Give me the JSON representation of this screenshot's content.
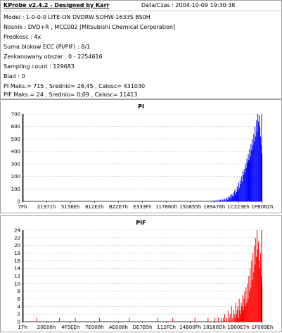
{
  "header": {
    "app_title": "KProbe v2.4.2 - Designed by Karr",
    "date_label": "Data/Czas : 2004-10-09 19:30:38"
  },
  "info_lines": [
    "Model : 1-0-0-0 LITE-ON DVDRW SOHW-1633S BS0H",
    "Nosnik : DVD+R , MCC002 [Mitsubishi Chemical Corporation]",
    "Predkosc : 4x",
    "Suma blokow ECC (PI/PIF) : 8/1",
    "Zeskanowany obszar : 0 - 2254616",
    "Sampling count : 129683",
    "Blad : 0",
    "PI Maks.= 715 , Srednio= 26,45 , Calosc= 431030",
    "PIF Maks.= 24 , Srednio= 0,09 , Calosc= 11413"
  ],
  "colors": {
    "pi_series": "#0000ff",
    "pif_series": "#ff0000",
    "grid": "#b4b4b4",
    "boundary": "#000000"
  },
  "chart_data": [
    {
      "type": "bar",
      "title": "PI",
      "ylim": [
        0,
        700
      ],
      "yticks": [
        0,
        100,
        200,
        300,
        400,
        500,
        600,
        700
      ],
      "xticks": [
        "7Fh",
        "21971h",
        "5156Eh",
        "812E2h",
        "B22E7h",
        "E333Fh",
        "117860h",
        "150855h",
        "189476h",
        "1C223Eh",
        "1FB062h"
      ],
      "grid": true,
      "series": [
        {
          "values": [
            0,
            0,
            0,
            0,
            0,
            0,
            0,
            0,
            0,
            0,
            0,
            0,
            0,
            0,
            0,
            0,
            0,
            0,
            0,
            0,
            0,
            0,
            0,
            0,
            0,
            0,
            0,
            0,
            0,
            0,
            0,
            0,
            0,
            0,
            0,
            0,
            0,
            0,
            0,
            0,
            0,
            0,
            0,
            0,
            0,
            0,
            0,
            0,
            0,
            0,
            0,
            0,
            0,
            0,
            0,
            0,
            0,
            0,
            0,
            0,
            0,
            0,
            0,
            0,
            0,
            0,
            0,
            0,
            0,
            0,
            0,
            0,
            0,
            0,
            0,
            0,
            0,
            0,
            0,
            0,
            0,
            0,
            0,
            0,
            0,
            0,
            0,
            0,
            0,
            0,
            0,
            0,
            0,
            0,
            0,
            0,
            0,
            0,
            0,
            0,
            0,
            0,
            0,
            0,
            0,
            0,
            0,
            0,
            0,
            0,
            0,
            0,
            0,
            0,
            0,
            0,
            0,
            0,
            0,
            0,
            0,
            0,
            0,
            0,
            0,
            0,
            0,
            0,
            0,
            0,
            0,
            0,
            0,
            0,
            0,
            0,
            0,
            0,
            0,
            0,
            0,
            0,
            0,
            0,
            0,
            0,
            0,
            0,
            0,
            0,
            0,
            0,
            0,
            0,
            0,
            0,
            0,
            0,
            0,
            0,
            0,
            0,
            0,
            0,
            0,
            0,
            0,
            0,
            0,
            0,
            0,
            0,
            0,
            0,
            0,
            0,
            0,
            0,
            0,
            0,
            0,
            0,
            0,
            0,
            0,
            0,
            0,
            0,
            0,
            0,
            0,
            0,
            0,
            0,
            0,
            0,
            0,
            0,
            0,
            0,
            0,
            0,
            0,
            0,
            0,
            0,
            0,
            0,
            0,
            0,
            0,
            0,
            0,
            0,
            0,
            0,
            0,
            0,
            0,
            0,
            0,
            0,
            0,
            0,
            0,
            0,
            0,
            0,
            0,
            0,
            0,
            0,
            0,
            0,
            0,
            0,
            0,
            0,
            0,
            0,
            0,
            0,
            0,
            0,
            0,
            0,
            0,
            0,
            0,
            0,
            0,
            0,
            0,
            0,
            0,
            0,
            0,
            0,
            0,
            0,
            0,
            0,
            0,
            0,
            0,
            0,
            0,
            0,
            0,
            0,
            0,
            0,
            0,
            0,
            0,
            0,
            0,
            5,
            0,
            8,
            0,
            0,
            10,
            0,
            6,
            0,
            12,
            0,
            15,
            9,
            0,
            18,
            10,
            0,
            22,
            14,
            0,
            25,
            30,
            12,
            40,
            20,
            35,
            50,
            28,
            60,
            45,
            70,
            38,
            85,
            55,
            100,
            75,
            120,
            90,
            150,
            110,
            170,
            140,
            200,
            160,
            240,
            210,
            260,
            230,
            300,
            270,
            340,
            310,
            380,
            330,
            420,
            360,
            460,
            410,
            500,
            450,
            540,
            480,
            600,
            520,
            650,
            560,
            715,
            640,
            690,
            600,
            520,
            450,
            380
          ]
        }
      ]
    },
    {
      "type": "bar",
      "title": "PIF",
      "ylim": [
        0,
        24
      ],
      "yticks": [
        0,
        2,
        4,
        6,
        8,
        10,
        12,
        14,
        16,
        18,
        20,
        22,
        24
      ],
      "xticks": [
        "17h",
        "20E06h",
        "4F5EEh",
        "7E008h",
        "AE008h",
        "DE7B5h",
        "112FCh",
        "14B00Fh",
        "18180Dh",
        "1B00E7h",
        "1F089Eh"
      ],
      "grid": true,
      "series": [
        {
          "values": [
            0,
            0,
            0,
            0,
            0,
            0,
            0,
            0,
            0,
            0,
            0,
            0,
            0,
            0,
            0,
            0,
            0,
            0,
            0,
            0,
            1,
            0,
            0,
            0,
            0,
            0,
            0,
            0,
            0,
            0,
            0,
            0,
            0,
            0,
            0,
            0,
            0,
            0,
            0,
            0,
            0,
            0,
            0,
            0,
            0,
            0,
            0,
            0,
            0,
            0,
            0,
            0,
            0,
            1,
            0,
            0,
            0,
            0,
            0,
            0,
            0,
            0,
            0,
            0,
            0,
            0,
            0,
            0,
            0,
            0,
            0,
            0,
            0,
            0,
            0,
            0,
            1,
            0,
            0,
            0,
            0,
            0,
            0,
            0,
            0,
            0,
            0,
            0,
            0,
            0,
            0,
            0,
            0,
            0,
            0,
            0,
            0,
            0,
            0,
            0,
            0,
            0,
            0,
            0,
            0,
            0,
            0,
            0,
            0,
            0,
            0,
            1,
            0,
            0,
            0,
            0,
            0,
            0,
            0,
            0,
            0,
            0,
            0,
            0,
            0,
            0,
            0,
            0,
            0,
            0,
            0,
            0,
            0,
            0,
            0,
            0,
            0,
            0,
            0,
            0,
            0,
            0,
            0,
            0,
            0,
            0,
            0,
            0,
            0,
            0,
            0,
            0,
            0,
            0,
            1,
            0,
            0,
            0,
            0,
            0,
            0,
            0,
            0,
            0,
            0,
            0,
            0,
            0,
            0,
            0,
            0,
            0,
            0,
            0,
            0,
            0,
            0,
            0,
            0,
            0,
            0,
            0,
            0,
            0,
            0,
            0,
            0,
            0,
            0,
            0,
            0,
            0,
            0,
            0,
            0,
            1,
            0,
            0,
            0,
            0,
            0,
            0,
            0,
            0,
            0,
            0,
            0,
            0,
            0,
            0,
            0,
            0,
            0,
            0,
            0,
            0,
            0,
            1,
            0,
            0,
            0,
            0,
            0,
            0,
            0,
            0,
            0,
            0,
            0,
            0,
            0,
            0,
            0,
            0,
            0,
            0,
            0,
            0,
            0,
            0,
            0,
            0,
            0,
            0,
            0,
            0,
            0,
            0,
            0,
            1,
            0,
            0,
            0,
            0,
            0,
            0,
            0,
            0,
            0,
            0,
            0,
            0,
            0,
            0,
            0,
            0,
            0,
            0,
            1,
            0,
            0,
            0,
            0,
            0,
            0,
            0,
            0,
            0,
            1,
            0,
            0,
            0,
            0,
            1,
            0,
            0,
            0,
            1,
            0,
            0,
            1,
            0,
            2,
            0,
            0,
            1,
            0,
            3,
            0,
            1,
            2,
            0,
            4,
            1,
            0,
            3,
            2,
            1,
            5,
            2,
            3,
            4,
            1,
            6,
            3,
            2,
            5,
            4,
            7,
            3,
            6,
            8,
            4,
            9,
            5,
            10,
            6,
            12,
            8,
            14,
            9,
            16,
            11,
            18,
            13,
            20,
            15,
            22,
            17,
            24,
            19,
            21,
            16,
            14,
            18,
            12,
            10
          ]
        }
      ]
    }
  ]
}
